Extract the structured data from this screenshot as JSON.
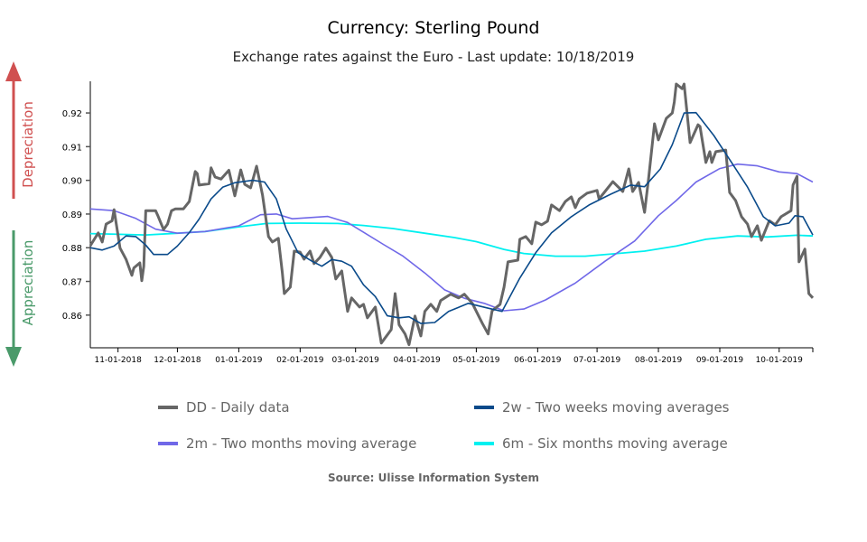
{
  "chart_data": {
    "type": "line",
    "title": "Currency: Sterling Pound",
    "subtitle": "Exchange rates against the Euro - Last update: 10/18/2019",
    "source": "Source: Ulisse Information System",
    "xlabel": "",
    "ylabel": "",
    "xlim": [
      "2018-10-18",
      "2019-10-18"
    ],
    "ylim": [
      0.8503,
      0.9294
    ],
    "y_ticks": [
      "0.86",
      "0.87",
      "0.88",
      "0.89",
      "0.90",
      "0.91",
      "0.92"
    ],
    "x_ticks": [
      {
        "date": "2018-11-01",
        "label": "11-01-2018"
      },
      {
        "date": "2018-12-01",
        "label": "12-01-2018"
      },
      {
        "date": "2019-01-01",
        "label": "01-01-2019"
      },
      {
        "date": "2019-02-01",
        "label": "02-01-2019"
      },
      {
        "date": "2019-03-01",
        "label": "03-01-2019"
      },
      {
        "date": "2019-04-01",
        "label": "04-01-2019"
      },
      {
        "date": "2019-05-01",
        "label": "05-01-2019"
      },
      {
        "date": "2019-06-01",
        "label": "06-01-2019"
      },
      {
        "date": "2019-07-01",
        "label": "07-01-2019"
      },
      {
        "date": "2019-08-01",
        "label": "08-01-2019"
      },
      {
        "date": "2019-09-01",
        "label": "09-01-2019"
      },
      {
        "date": "2019-10-01",
        "label": "10-01-2019"
      }
    ],
    "grid": false,
    "legend_position": "bottom",
    "annotations": {
      "up_arrow": {
        "label": "Depreciation",
        "color": "#d05050"
      },
      "down_arrow": {
        "label": "Appreciation",
        "color": "#4a9a6a"
      }
    },
    "series": [
      {
        "name": "DD - Daily data",
        "color": "#666666",
        "width": 3,
        "points": [
          [
            "2018-10-18",
            0.8806
          ],
          [
            "2018-10-22",
            0.8844
          ],
          [
            "2018-10-24",
            0.8817
          ],
          [
            "2018-10-26",
            0.887
          ],
          [
            "2018-10-29",
            0.888
          ],
          [
            "2018-10-30",
            0.8913
          ],
          [
            "2018-11-02",
            0.8799
          ],
          [
            "2018-11-05",
            0.8766
          ],
          [
            "2018-11-08",
            0.8718
          ],
          [
            "2018-11-09",
            0.874
          ],
          [
            "2018-11-12",
            0.8755
          ],
          [
            "2018-11-13",
            0.8702
          ],
          [
            "2018-11-14",
            0.8745
          ],
          [
            "2018-11-15",
            0.891
          ],
          [
            "2018-11-20",
            0.891
          ],
          [
            "2018-11-21",
            0.8897
          ],
          [
            "2018-11-24",
            0.8854
          ],
          [
            "2018-11-26",
            0.887
          ],
          [
            "2018-11-28",
            0.891
          ],
          [
            "2018-11-30",
            0.8915
          ],
          [
            "2018-12-04",
            0.8915
          ],
          [
            "2018-12-07",
            0.8937
          ],
          [
            "2018-12-10",
            0.9026
          ],
          [
            "2018-12-11",
            0.902
          ],
          [
            "2018-12-12",
            0.8986
          ],
          [
            "2018-12-17",
            0.899
          ],
          [
            "2018-12-18",
            0.9037
          ],
          [
            "2018-12-20",
            0.901
          ],
          [
            "2018-12-23",
            0.9004
          ],
          [
            "2018-12-27",
            0.903
          ],
          [
            "2018-12-30",
            0.8954
          ],
          [
            "2019-01-02",
            0.9031
          ],
          [
            "2019-01-04",
            0.8988
          ],
          [
            "2019-01-07",
            0.8978
          ],
          [
            "2019-01-10",
            0.9042
          ],
          [
            "2019-01-13",
            0.8956
          ],
          [
            "2019-01-16",
            0.8833
          ],
          [
            "2019-01-18",
            0.8817
          ],
          [
            "2019-01-21",
            0.8828
          ],
          [
            "2019-01-23",
            0.8726
          ],
          [
            "2019-01-24",
            0.8664
          ],
          [
            "2019-01-27",
            0.8683
          ],
          [
            "2019-01-29",
            0.879
          ],
          [
            "2019-02-01",
            0.8787
          ],
          [
            "2019-02-03",
            0.8766
          ],
          [
            "2019-02-06",
            0.879
          ],
          [
            "2019-02-08",
            0.8753
          ],
          [
            "2019-02-11",
            0.8771
          ],
          [
            "2019-02-14",
            0.8799
          ],
          [
            "2019-02-17",
            0.8771
          ],
          [
            "2019-02-19",
            0.8707
          ],
          [
            "2019-02-22",
            0.8731
          ],
          [
            "2019-02-25",
            0.8611
          ],
          [
            "2019-02-27",
            0.8651
          ],
          [
            "2019-03-03",
            0.8624
          ],
          [
            "2019-03-05",
            0.8632
          ],
          [
            "2019-03-07",
            0.8592
          ],
          [
            "2019-03-11",
            0.8624
          ],
          [
            "2019-03-14",
            0.8517
          ],
          [
            "2019-03-19",
            0.8557
          ],
          [
            "2019-03-21",
            0.8664
          ],
          [
            "2019-03-23",
            0.8571
          ],
          [
            "2019-03-26",
            0.8544
          ],
          [
            "2019-03-28",
            0.8512
          ],
          [
            "2019-03-31",
            0.8597
          ],
          [
            "2019-04-03",
            0.8538
          ],
          [
            "2019-04-05",
            0.8611
          ],
          [
            "2019-04-08",
            0.8632
          ],
          [
            "2019-04-11",
            0.8611
          ],
          [
            "2019-04-13",
            0.8643
          ],
          [
            "2019-04-18",
            0.8662
          ],
          [
            "2019-04-22",
            0.8651
          ],
          [
            "2019-04-25",
            0.8662
          ],
          [
            "2019-04-29",
            0.8635
          ],
          [
            "2019-05-04",
            0.8576
          ],
          [
            "2019-05-07",
            0.8544
          ],
          [
            "2019-05-09",
            0.8613
          ],
          [
            "2019-05-13",
            0.8632
          ],
          [
            "2019-05-15",
            0.8683
          ],
          [
            "2019-05-17",
            0.8758
          ],
          [
            "2019-05-22",
            0.8763
          ],
          [
            "2019-05-23",
            0.8825
          ],
          [
            "2019-05-26",
            0.8833
          ],
          [
            "2019-05-29",
            0.8812
          ],
          [
            "2019-05-31",
            0.8876
          ],
          [
            "2019-06-03",
            0.8868
          ],
          [
            "2019-06-06",
            0.8879
          ],
          [
            "2019-06-08",
            0.8927
          ],
          [
            "2019-06-12",
            0.891
          ],
          [
            "2019-06-15",
            0.8937
          ],
          [
            "2019-06-18",
            0.8951
          ],
          [
            "2019-06-20",
            0.8919
          ],
          [
            "2019-06-22",
            0.8945
          ],
          [
            "2019-06-26",
            0.8962
          ],
          [
            "2019-07-01",
            0.897
          ],
          [
            "2019-07-02",
            0.8945
          ],
          [
            "2019-07-05",
            0.8967
          ],
          [
            "2019-07-09",
            0.8996
          ],
          [
            "2019-07-14",
            0.8967
          ],
          [
            "2019-07-17",
            0.9034
          ],
          [
            "2019-07-19",
            0.8967
          ],
          [
            "2019-07-22",
            0.8994
          ],
          [
            "2019-07-25",
            0.8905
          ],
          [
            "2019-07-27",
            0.9004
          ],
          [
            "2019-07-30",
            0.9168
          ],
          [
            "2019-08-01",
            0.912
          ],
          [
            "2019-08-05",
            0.9184
          ],
          [
            "2019-08-08",
            0.92
          ],
          [
            "2019-08-09",
            0.9232
          ],
          [
            "2019-08-10",
            0.9286
          ],
          [
            "2019-08-13",
            0.9272
          ],
          [
            "2019-08-14",
            0.9286
          ],
          [
            "2019-08-17",
            0.9112
          ],
          [
            "2019-08-21",
            0.9165
          ],
          [
            "2019-08-22",
            0.916
          ],
          [
            "2019-08-25",
            0.9053
          ],
          [
            "2019-08-27",
            0.9085
          ],
          [
            "2019-08-28",
            0.9053
          ],
          [
            "2019-08-30",
            0.9085
          ],
          [
            "2019-09-04",
            0.909
          ],
          [
            "2019-09-06",
            0.8964
          ],
          [
            "2019-09-09",
            0.894
          ],
          [
            "2019-09-12",
            0.8892
          ],
          [
            "2019-09-15",
            0.887
          ],
          [
            "2019-09-17",
            0.8833
          ],
          [
            "2019-09-20",
            0.8865
          ],
          [
            "2019-09-22",
            0.8822
          ],
          [
            "2019-09-26",
            0.888
          ],
          [
            "2019-09-29",
            0.8868
          ],
          [
            "2019-10-02",
            0.8892
          ],
          [
            "2019-10-07",
            0.891
          ],
          [
            "2019-10-08",
            0.8986
          ],
          [
            "2019-10-10",
            0.9012
          ],
          [
            "2019-10-11",
            0.8758
          ],
          [
            "2019-10-14",
            0.8796
          ],
          [
            "2019-10-16",
            0.8664
          ],
          [
            "2019-10-18",
            0.8651
          ]
        ]
      },
      {
        "name": "2w - Two weeks moving averages",
        "color": "#0a4a8a",
        "width": 1.6,
        "points": [
          [
            "2018-10-18",
            0.88
          ],
          [
            "2018-10-24",
            0.8793
          ],
          [
            "2018-10-30",
            0.8805
          ],
          [
            "2018-11-05",
            0.8835
          ],
          [
            "2018-11-10",
            0.8833
          ],
          [
            "2018-11-15",
            0.8808
          ],
          [
            "2018-11-19",
            0.878
          ],
          [
            "2018-11-26",
            0.878
          ],
          [
            "2018-12-01",
            0.8805
          ],
          [
            "2018-12-07",
            0.8845
          ],
          [
            "2018-12-12",
            0.8885
          ],
          [
            "2018-12-18",
            0.8945
          ],
          [
            "2018-12-24",
            0.898
          ],
          [
            "2018-12-30",
            0.8993
          ],
          [
            "2019-01-08",
            0.9
          ],
          [
            "2019-01-14",
            0.8995
          ],
          [
            "2019-01-20",
            0.8945
          ],
          [
            "2019-01-25",
            0.8855
          ],
          [
            "2019-01-31",
            0.8785
          ],
          [
            "2019-02-07",
            0.876
          ],
          [
            "2019-02-12",
            0.8745
          ],
          [
            "2019-02-17",
            0.8765
          ],
          [
            "2019-02-22",
            0.876
          ],
          [
            "2019-02-27",
            0.8745
          ],
          [
            "2019-03-05",
            0.869
          ],
          [
            "2019-03-11",
            0.8655
          ],
          [
            "2019-03-17",
            0.8598
          ],
          [
            "2019-03-23",
            0.8592
          ],
          [
            "2019-03-28",
            0.8595
          ],
          [
            "2019-04-03",
            0.8575
          ],
          [
            "2019-04-10",
            0.8578
          ],
          [
            "2019-04-17",
            0.8611
          ],
          [
            "2019-04-27",
            0.8635
          ],
          [
            "2019-05-08",
            0.8619
          ],
          [
            "2019-05-14",
            0.8611
          ],
          [
            "2019-05-23",
            0.871
          ],
          [
            "2019-05-31",
            0.8785
          ],
          [
            "2019-06-08",
            0.8844
          ],
          [
            "2019-06-18",
            0.8892
          ],
          [
            "2019-06-27",
            0.8927
          ],
          [
            "2019-07-08",
            0.8959
          ],
          [
            "2019-07-18",
            0.8986
          ],
          [
            "2019-07-25",
            0.8981
          ],
          [
            "2019-08-02",
            0.9034
          ],
          [
            "2019-08-08",
            0.9106
          ],
          [
            "2019-08-14",
            0.92
          ],
          [
            "2019-08-20",
            0.9201
          ],
          [
            "2019-08-29",
            0.9133
          ],
          [
            "2019-09-07",
            0.9053
          ],
          [
            "2019-09-15",
            0.898
          ],
          [
            "2019-09-23",
            0.8892
          ],
          [
            "2019-09-29",
            0.8865
          ],
          [
            "2019-10-06",
            0.8873
          ],
          [
            "2019-10-09",
            0.8895
          ],
          [
            "2019-10-13",
            0.8892
          ],
          [
            "2019-10-18",
            0.8838
          ]
        ]
      },
      {
        "name": "2m - Two months moving average",
        "color": "#7068e8",
        "width": 1.6,
        "points": [
          [
            "2018-10-18",
            0.8915
          ],
          [
            "2018-10-30",
            0.891
          ],
          [
            "2018-11-10",
            0.8887
          ],
          [
            "2018-11-20",
            0.8855
          ],
          [
            "2018-12-01",
            0.8843
          ],
          [
            "2018-12-15",
            0.8848
          ],
          [
            "2019-01-01",
            0.8865
          ],
          [
            "2019-01-12",
            0.8898
          ],
          [
            "2019-01-20",
            0.89
          ],
          [
            "2019-01-28",
            0.8886
          ],
          [
            "2019-02-15",
            0.8893
          ],
          [
            "2019-02-25",
            0.8875
          ],
          [
            "2019-03-05",
            0.8846
          ],
          [
            "2019-03-15",
            0.881
          ],
          [
            "2019-03-25",
            0.8775
          ],
          [
            "2019-04-05",
            0.8725
          ],
          [
            "2019-04-15",
            0.8675
          ],
          [
            "2019-04-25",
            0.865
          ],
          [
            "2019-05-05",
            0.8635
          ],
          [
            "2019-05-15",
            0.8613
          ],
          [
            "2019-05-25",
            0.8618
          ],
          [
            "2019-06-05",
            0.8645
          ],
          [
            "2019-06-20",
            0.8695
          ],
          [
            "2019-07-05",
            0.876
          ],
          [
            "2019-07-20",
            0.882
          ],
          [
            "2019-08-01",
            0.8895
          ],
          [
            "2019-08-10",
            0.894
          ],
          [
            "2019-08-20",
            0.8995
          ],
          [
            "2019-09-01",
            0.9035
          ],
          [
            "2019-09-10",
            0.9048
          ],
          [
            "2019-09-20",
            0.9043
          ],
          [
            "2019-10-01",
            0.9025
          ],
          [
            "2019-10-10",
            0.902
          ],
          [
            "2019-10-18",
            0.8995
          ]
        ]
      },
      {
        "name": "6m - Six months moving average",
        "color": "#00f0f0",
        "width": 1.8,
        "points": [
          [
            "2018-10-18",
            0.8842
          ],
          [
            "2018-11-15",
            0.8838
          ],
          [
            "2018-12-01",
            0.8843
          ],
          [
            "2018-12-15",
            0.8848
          ],
          [
            "2019-01-01",
            0.8862
          ],
          [
            "2019-01-15",
            0.8872
          ],
          [
            "2019-02-01",
            0.8873
          ],
          [
            "2019-02-20",
            0.8872
          ],
          [
            "2019-03-05",
            0.8866
          ],
          [
            "2019-03-20",
            0.8857
          ],
          [
            "2019-04-05",
            0.8843
          ],
          [
            "2019-04-20",
            0.883
          ],
          [
            "2019-05-01",
            0.8818
          ],
          [
            "2019-05-15",
            0.8795
          ],
          [
            "2019-05-25",
            0.8783
          ],
          [
            "2019-06-10",
            0.8775
          ],
          [
            "2019-06-25",
            0.8775
          ],
          [
            "2019-07-10",
            0.8782
          ],
          [
            "2019-07-25",
            0.879
          ],
          [
            "2019-08-10",
            0.8805
          ],
          [
            "2019-08-25",
            0.8825
          ],
          [
            "2019-09-10",
            0.8835
          ],
          [
            "2019-09-25",
            0.8832
          ],
          [
            "2019-10-10",
            0.8837
          ],
          [
            "2019-10-18",
            0.8835
          ]
        ]
      }
    ]
  }
}
